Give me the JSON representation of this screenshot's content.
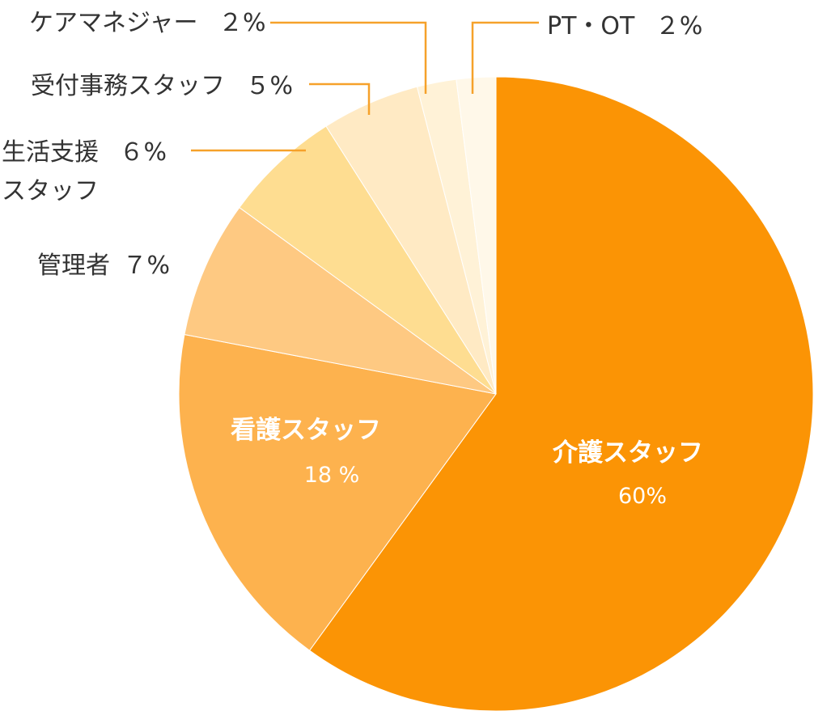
{
  "chart_data": {
    "type": "pie",
    "start": "12 o'clock",
    "direction": "clockwise",
    "slices": [
      {
        "label": "介護スタッフ",
        "value": 60,
        "value_label": "60%",
        "color": "#fb9405"
      },
      {
        "label": "看護スタッフ",
        "value": 18,
        "value_label": "18 %",
        "color": "#fdb24e"
      },
      {
        "label": "管理者",
        "value": 7,
        "value_label": "７%",
        "color": "#fec982"
      },
      {
        "label": "生活支援スタッフ",
        "label_lines": [
          "生活支援",
          "スタッフ"
        ],
        "value": 6,
        "value_label": "６%",
        "color": "#fedd91"
      },
      {
        "label": "受付事務スタッフ",
        "value": 5,
        "value_label": "５%",
        "color": "#ffeac4"
      },
      {
        "label": "ケアマネジャー",
        "value": 2,
        "value_label": "２%",
        "color": "#fff2d7"
      },
      {
        "label": "PT・OT",
        "value": 2,
        "value_label": "２%",
        "color": "#fff8e9"
      }
    ]
  }
}
